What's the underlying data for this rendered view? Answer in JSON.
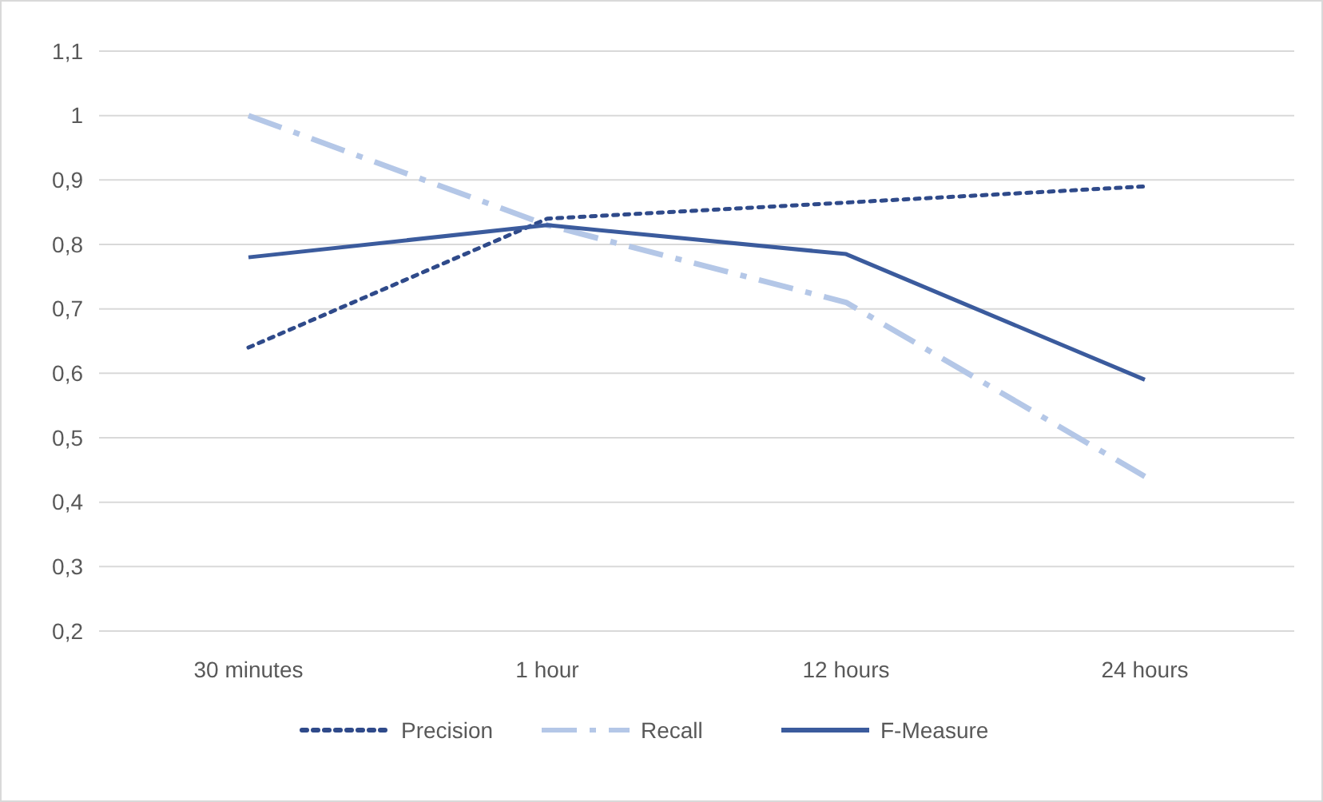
{
  "chart_data": {
    "type": "line",
    "categories": [
      "30 minutes",
      "1 hour",
      "12 hours",
      "24 hours"
    ],
    "series": [
      {
        "name": "Precision",
        "color": "#2f4a8a",
        "line_style": "dotted",
        "values": [
          0.64,
          0.84,
          0.865,
          0.89
        ]
      },
      {
        "name": "Recall",
        "color": "#b4c7e7",
        "line_style": "dashdot",
        "values": [
          1.0,
          0.83,
          0.71,
          0.44
        ]
      },
      {
        "name": "F-Measure",
        "color": "#3b5b9d",
        "line_style": "solid",
        "values": [
          0.78,
          0.83,
          0.785,
          0.59
        ]
      }
    ],
    "ylim": [
      0.2,
      1.1
    ],
    "yticks": [
      {
        "value": 0.2,
        "label": "0,2"
      },
      {
        "value": 0.3,
        "label": "0,3"
      },
      {
        "value": 0.4,
        "label": "0,4"
      },
      {
        "value": 0.5,
        "label": "0,5"
      },
      {
        "value": 0.6,
        "label": "0,6"
      },
      {
        "value": 0.7,
        "label": "0,7"
      },
      {
        "value": 0.8,
        "label": "0,8"
      },
      {
        "value": 0.9,
        "label": "0,9"
      },
      {
        "value": 1,
        "label": "1"
      },
      {
        "value": 1.1,
        "label": "1,1"
      }
    ],
    "grid": "y",
    "legend": "bottom",
    "marker": "none"
  }
}
